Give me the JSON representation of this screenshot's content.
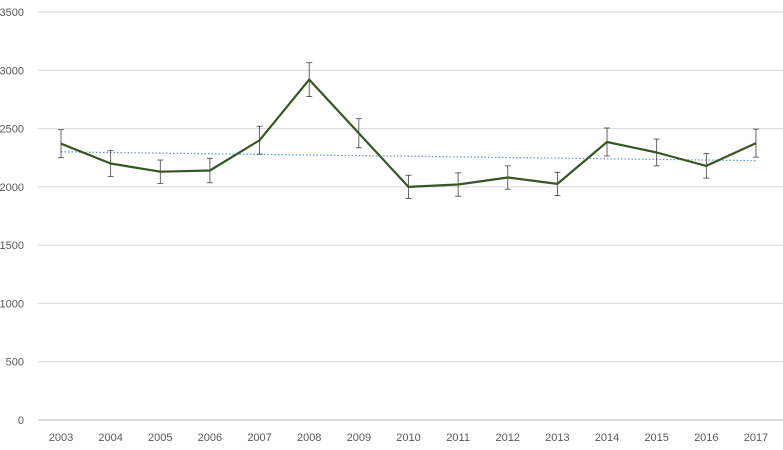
{
  "chart_data": {
    "type": "line",
    "title": "",
    "xlabel": "",
    "ylabel": "",
    "categories": [
      "2003",
      "2004",
      "2005",
      "2006",
      "2007",
      "2008",
      "2009",
      "2010",
      "2011",
      "2012",
      "2013",
      "2014",
      "2015",
      "2016",
      "2017"
    ],
    "series": [
      {
        "values": [
          2370,
          2200,
          2130,
          2140,
          2400,
          2920,
          2460,
          2000,
          2020,
          2080,
          2025,
          2385,
          2295,
          2180,
          2375
        ],
        "error": [
          120,
          110,
          100,
          105,
          120,
          145,
          125,
          100,
          100,
          100,
          100,
          120,
          115,
          105,
          120
        ],
        "color": "#375623",
        "trendline": {
          "start": 2300,
          "end": 2225,
          "color": "#5b9bd5",
          "style": "dotted"
        }
      }
    ],
    "ylim": [
      0,
      3500
    ],
    "yticks": [
      "0",
      "500",
      "1000",
      "1500",
      "2000",
      "2500",
      "3000",
      "3500"
    ],
    "grid": true,
    "legend": "none"
  }
}
